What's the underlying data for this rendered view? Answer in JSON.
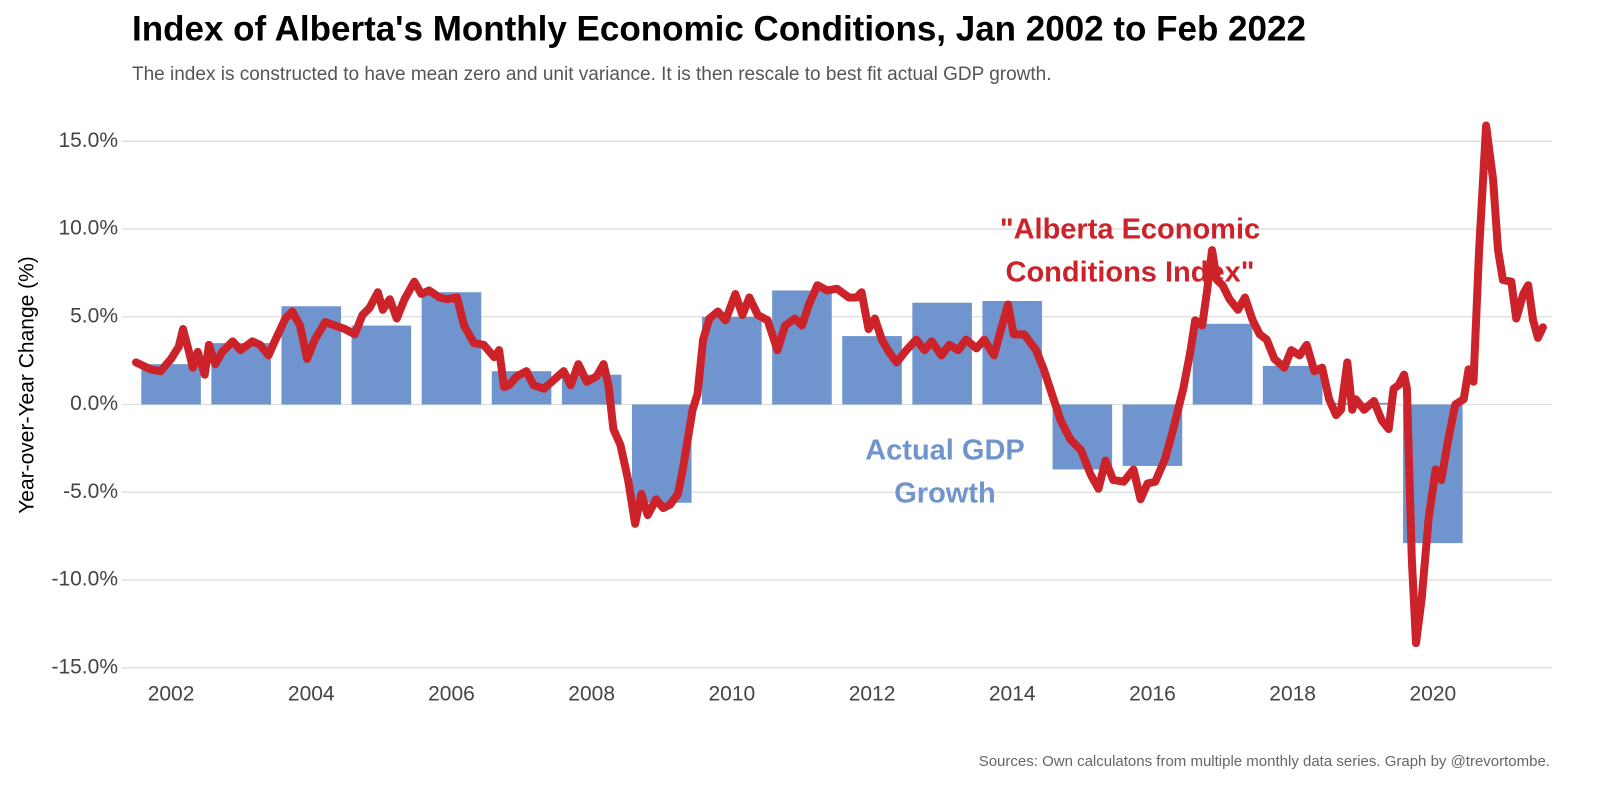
{
  "chart_data": {
    "type": "combo",
    "title": "Index of Alberta's Monthly Economic Conditions, Jan 2002 to Feb 2022",
    "subtitle": "The index is constructed to have mean zero and unit variance. It is then rescale to best fit actual GDP growth.",
    "y_label": "Year-over-Year Change (%)",
    "caption": "Sources: Own calculatons from multiple monthly data series. Graph by @trevortombe.",
    "xlim": [
      2001.8,
      2022.2
    ],
    "ylim": [
      -15.7,
      16.5
    ],
    "xticks": [
      {
        "value": 2002.5,
        "label": "2002"
      },
      {
        "value": 2004.5,
        "label": "2004"
      },
      {
        "value": 2006.5,
        "label": "2006"
      },
      {
        "value": 2008.5,
        "label": "2008"
      },
      {
        "value": 2010.5,
        "label": "2010"
      },
      {
        "value": 2012.5,
        "label": "2012"
      },
      {
        "value": 2014.5,
        "label": "2014"
      },
      {
        "value": 2016.5,
        "label": "2016"
      },
      {
        "value": 2018.5,
        "label": "2018"
      },
      {
        "value": 2020.5,
        "label": "2020"
      }
    ],
    "yticks": [
      {
        "value": 15,
        "label": "15.0%"
      },
      {
        "value": 10,
        "label": "10.0%"
      },
      {
        "value": 5,
        "label": "5.0%"
      },
      {
        "value": 0,
        "label": "0.0%"
      },
      {
        "value": -5,
        "label": "-5.0%"
      },
      {
        "value": -10,
        "label": "-10.0%"
      },
      {
        "value": -15,
        "label": "-15.0%"
      }
    ],
    "grid": true,
    "series": [
      {
        "type": "bar",
        "color": "#7094cd",
        "x": [
          2002.5,
          2003.5,
          2004.5,
          2005.5,
          2006.5,
          2007.5,
          2008.5,
          2009.5,
          2010.5,
          2011.5,
          2012.5,
          2013.5,
          2014.5,
          2015.5,
          2016.5,
          2017.5,
          2018.5,
          2019.5,
          2020.5
        ],
        "values": [
          2.3,
          3.5,
          5.6,
          4.5,
          6.4,
          1.9,
          1.7,
          -5.6,
          5.0,
          6.5,
          3.9,
          5.8,
          5.9,
          -3.7,
          -3.5,
          4.6,
          2.2,
          0.1,
          -7.9
        ]
      },
      {
        "type": "line",
        "color": "#cc2229",
        "x": [
          2002.0,
          2002.21,
          2002.35,
          2002.5,
          2002.61,
          2002.67,
          2002.75,
          2002.81,
          2002.88,
          2002.98,
          2003.04,
          2003.13,
          2003.23,
          2003.38,
          2003.49,
          2003.66,
          2003.77,
          2003.89,
          2003.99,
          2004.13,
          2004.23,
          2004.34,
          2004.44,
          2004.55,
          2004.7,
          2004.84,
          2004.98,
          2005.12,
          2005.23,
          2005.33,
          2005.45,
          2005.52,
          2005.62,
          2005.72,
          2005.83,
          2005.97,
          2006.07,
          2006.18,
          2006.33,
          2006.44,
          2006.58,
          2006.68,
          2006.82,
          2006.96,
          2007.11,
          2007.18,
          2007.25,
          2007.32,
          2007.43,
          2007.57,
          2007.67,
          2007.82,
          2007.96,
          2008.1,
          2008.2,
          2008.31,
          2008.43,
          2008.57,
          2008.67,
          2008.74,
          2008.81,
          2008.91,
          2009.02,
          2009.12,
          2009.21,
          2009.3,
          2009.42,
          2009.52,
          2009.62,
          2009.73,
          2009.8,
          2009.87,
          2009.94,
          2010.01,
          2010.09,
          2010.18,
          2010.3,
          2010.41,
          2010.55,
          2010.65,
          2010.75,
          2010.87,
          2011.01,
          2011.15,
          2011.26,
          2011.4,
          2011.5,
          2011.6,
          2011.72,
          2011.86,
          2012.0,
          2012.17,
          2012.28,
          2012.35,
          2012.45,
          2012.54,
          2012.64,
          2012.74,
          2012.85,
          2012.99,
          2013.13,
          2013.25,
          2013.35,
          2013.49,
          2013.6,
          2013.73,
          2013.84,
          2013.99,
          2014.1,
          2014.24,
          2014.34,
          2014.44,
          2014.52,
          2014.67,
          2014.84,
          2014.95,
          2015.09,
          2015.19,
          2015.33,
          2015.48,
          2015.62,
          2015.73,
          2015.83,
          2015.94,
          2016.09,
          2016.23,
          2016.33,
          2016.43,
          2016.54,
          2016.68,
          2016.79,
          2016.94,
          2017.04,
          2017.11,
          2017.21,
          2017.28,
          2017.35,
          2017.42,
          2017.5,
          2017.6,
          2017.72,
          2017.82,
          2017.93,
          2018.03,
          2018.13,
          2018.24,
          2018.38,
          2018.48,
          2018.6,
          2018.7,
          2018.81,
          2018.92,
          2019.02,
          2019.12,
          2019.19,
          2019.28,
          2019.35,
          2019.4,
          2019.52,
          2019.66,
          2019.77,
          2019.87,
          2019.94,
          2020.01,
          2020.09,
          2020.13,
          2020.2,
          2020.26,
          2020.34,
          2020.44,
          2020.54,
          2020.62,
          2020.72,
          2020.82,
          2020.94,
          2021.01,
          2021.08,
          2021.16,
          2021.26,
          2021.36,
          2021.43,
          2021.5,
          2021.62,
          2021.69,
          2021.79,
          2021.86,
          2021.93,
          2022.0,
          2022.07
        ],
        "values": [
          2.4,
          2.0,
          1.9,
          2.6,
          3.3,
          4.3,
          3.1,
          2.1,
          3.0,
          1.7,
          3.4,
          2.3,
          3.0,
          3.6,
          3.1,
          3.6,
          3.4,
          2.8,
          3.7,
          4.9,
          5.3,
          4.5,
          2.6,
          3.7,
          4.7,
          4.5,
          4.3,
          4.0,
          5.1,
          5.5,
          6.4,
          5.4,
          6.0,
          4.9,
          6.0,
          7.0,
          6.3,
          6.5,
          6.1,
          6.0,
          6.1,
          4.5,
          3.5,
          3.4,
          2.7,
          3.1,
          1.0,
          1.1,
          1.6,
          1.9,
          1.1,
          0.9,
          1.4,
          1.9,
          1.1,
          2.3,
          1.3,
          1.6,
          2.3,
          1.1,
          -1.4,
          -2.3,
          -4.3,
          -6.8,
          -5.1,
          -6.3,
          -5.4,
          -5.9,
          -5.7,
          -5.1,
          -3.7,
          -2.0,
          -0.3,
          0.6,
          3.7,
          4.9,
          5.3,
          4.8,
          6.3,
          5.1,
          6.1,
          5.1,
          4.8,
          3.1,
          4.5,
          4.9,
          4.5,
          5.7,
          6.8,
          6.5,
          6.6,
          6.1,
          6.1,
          6.4,
          4.3,
          4.9,
          3.7,
          3.0,
          2.4,
          3.1,
          3.7,
          3.1,
          3.6,
          2.8,
          3.4,
          3.1,
          3.7,
          3.2,
          3.7,
          2.8,
          4.3,
          5.7,
          4.0,
          4.0,
          3.1,
          2.0,
          0.3,
          -0.9,
          -2.0,
          -2.6,
          -4.0,
          -4.8,
          -3.2,
          -4.3,
          -4.4,
          -3.7,
          -5.4,
          -4.5,
          -4.4,
          -3.1,
          -1.5,
          0.9,
          3.0,
          4.8,
          4.5,
          6.5,
          8.8,
          7.1,
          6.8,
          6.0,
          5.4,
          6.1,
          4.8,
          4.0,
          3.7,
          2.6,
          2.1,
          3.1,
          2.8,
          3.4,
          1.9,
          2.1,
          0.3,
          -0.6,
          -0.3,
          2.4,
          -0.3,
          0.3,
          -0.3,
          0.2,
          -0.9,
          -1.4,
          0.9,
          1.1,
          1.7,
          0.9,
          -8.8,
          -13.6,
          -11.1,
          -6.5,
          -3.7,
          -4.3,
          -2.0,
          0.0,
          0.3,
          2.0,
          1.3,
          8.8,
          15.9,
          12.8,
          8.8,
          7.1,
          7.0,
          4.9,
          6.3,
          6.8,
          4.8,
          3.8,
          4.4
        ]
      }
    ],
    "annotations": [
      {
        "series": 1,
        "lines": [
          "\"Alberta Economic",
          "Conditions Index\""
        ]
      },
      {
        "series": 0,
        "lines": [
          "Actual GDP",
          "Growth"
        ]
      }
    ]
  }
}
